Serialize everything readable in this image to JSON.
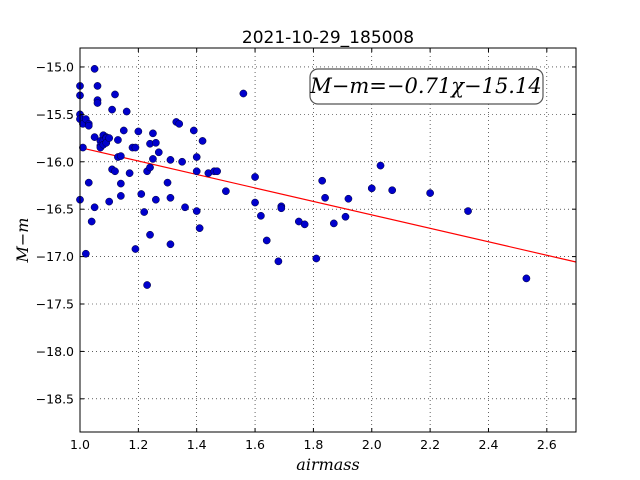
{
  "chart_data": {
    "type": "scatter",
    "title": "2021-10-29_185008",
    "xlabel": "airmass",
    "ylabel": "M−m",
    "xlim": [
      1.0,
      2.7
    ],
    "ylim": [
      -18.85,
      -14.8
    ],
    "x_ticks": [
      "1.0",
      "1.2",
      "1.4",
      "1.6",
      "1.8",
      "2.0",
      "2.2",
      "2.4",
      "2.6"
    ],
    "y_ticks": [
      "−15.0",
      "−15.5",
      "−16.0",
      "−16.5",
      "−17.0",
      "−17.5",
      "−18.0",
      "−18.5"
    ],
    "grid": true,
    "annotation": "M−m=−0.71χ−15.14",
    "fit": {
      "slope": -0.71,
      "intercept": -15.14,
      "color": "#ff0000"
    },
    "point_color": "#0000cc",
    "points": [
      [
        1.0,
        -15.2
      ],
      [
        1.0,
        -15.3
      ],
      [
        1.0,
        -15.5
      ],
      [
        1.0,
        -15.55
      ],
      [
        1.0,
        -16.4
      ],
      [
        1.01,
        -15.6
      ],
      [
        1.01,
        -15.85
      ],
      [
        1.02,
        -15.55
      ],
      [
        1.02,
        -16.97
      ],
      [
        1.03,
        -15.6
      ],
      [
        1.03,
        -15.62
      ],
      [
        1.03,
        -16.22
      ],
      [
        1.04,
        -16.63
      ],
      [
        1.05,
        -15.02
      ],
      [
        1.05,
        -15.74
      ],
      [
        1.05,
        -16.48
      ],
      [
        1.06,
        -15.2
      ],
      [
        1.06,
        -15.35
      ],
      [
        1.06,
        -15.38
      ],
      [
        1.07,
        -15.78
      ],
      [
        1.07,
        -15.83
      ],
      [
        1.07,
        -15.85
      ],
      [
        1.08,
        -15.72
      ],
      [
        1.08,
        -15.78
      ],
      [
        1.08,
        -15.82
      ],
      [
        1.09,
        -15.74
      ],
      [
        1.09,
        -15.75
      ],
      [
        1.09,
        -15.8
      ],
      [
        1.1,
        -15.75
      ],
      [
        1.1,
        -16.42
      ],
      [
        1.11,
        -15.45
      ],
      [
        1.11,
        -16.08
      ],
      [
        1.12,
        -15.29
      ],
      [
        1.12,
        -16.1
      ],
      [
        1.13,
        -15.77
      ],
      [
        1.13,
        -15.95
      ],
      [
        1.14,
        -15.94
      ],
      [
        1.14,
        -16.23
      ],
      [
        1.14,
        -16.36
      ],
      [
        1.15,
        -15.67
      ],
      [
        1.16,
        -15.47
      ],
      [
        1.17,
        -16.12
      ],
      [
        1.18,
        -15.85
      ],
      [
        1.19,
        -15.85
      ],
      [
        1.19,
        -16.92
      ],
      [
        1.2,
        -15.68
      ],
      [
        1.21,
        -16.34
      ],
      [
        1.22,
        -16.53
      ],
      [
        1.23,
        -16.1
      ],
      [
        1.23,
        -17.3
      ],
      [
        1.24,
        -15.81
      ],
      [
        1.24,
        -16.06
      ],
      [
        1.24,
        -16.77
      ],
      [
        1.25,
        -15.7
      ],
      [
        1.25,
        -15.97
      ],
      [
        1.26,
        -15.8
      ],
      [
        1.26,
        -16.4
      ],
      [
        1.27,
        -15.9
      ],
      [
        1.3,
        -16.22
      ],
      [
        1.31,
        -15.98
      ],
      [
        1.31,
        -16.38
      ],
      [
        1.31,
        -16.87
      ],
      [
        1.33,
        -15.58
      ],
      [
        1.34,
        -15.6
      ],
      [
        1.35,
        -16.0
      ],
      [
        1.36,
        -16.48
      ],
      [
        1.39,
        -15.67
      ],
      [
        1.4,
        -15.95
      ],
      [
        1.4,
        -16.1
      ],
      [
        1.4,
        -16.52
      ],
      [
        1.41,
        -16.7
      ],
      [
        1.42,
        -15.78
      ],
      [
        1.44,
        -16.12
      ],
      [
        1.46,
        -16.1
      ],
      [
        1.47,
        -16.1
      ],
      [
        1.5,
        -16.31
      ],
      [
        1.56,
        -15.28
      ],
      [
        1.6,
        -16.16
      ],
      [
        1.6,
        -16.43
      ],
      [
        1.62,
        -16.57
      ],
      [
        1.64,
        -16.83
      ],
      [
        1.68,
        -17.05
      ],
      [
        1.69,
        -16.47
      ],
      [
        1.69,
        -16.49
      ],
      [
        1.75,
        -16.63
      ],
      [
        1.77,
        -16.66
      ],
      [
        1.81,
        -17.02
      ],
      [
        1.83,
        -16.2
      ],
      [
        1.84,
        -16.38
      ],
      [
        1.87,
        -16.65
      ],
      [
        1.91,
        -16.58
      ],
      [
        1.92,
        -16.39
      ],
      [
        2.0,
        -16.28
      ],
      [
        2.03,
        -16.04
      ],
      [
        2.07,
        -16.3
      ],
      [
        2.2,
        -16.33
      ],
      [
        2.33,
        -16.52
      ],
      [
        2.53,
        -17.23
      ]
    ]
  }
}
